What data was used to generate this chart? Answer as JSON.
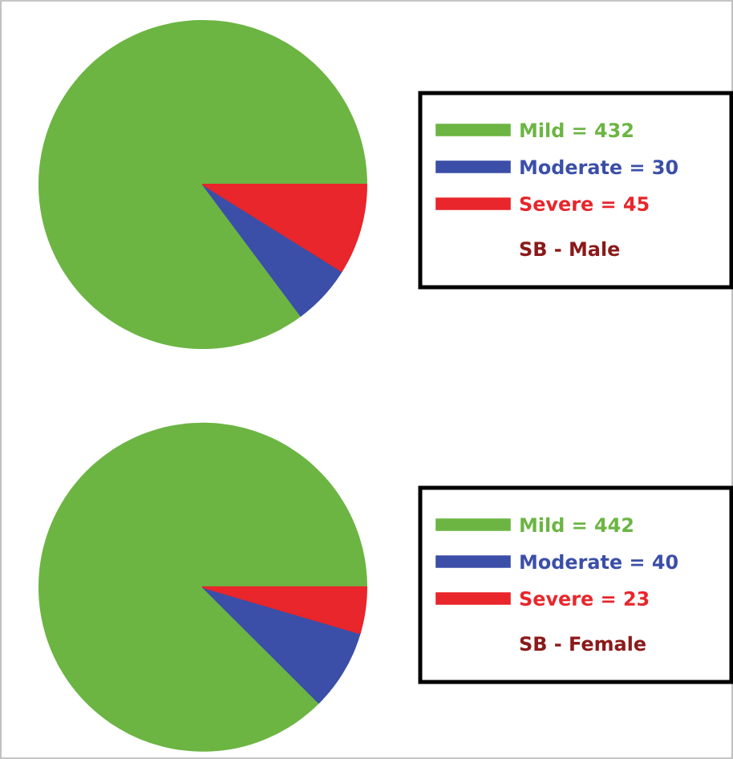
{
  "chart_data": [
    {
      "type": "pie",
      "categories": [
        "Mild = 432",
        "Moderate = 30",
        "Severe = 45"
      ],
      "values": [
        432,
        30,
        45
      ],
      "colors": [
        "#6cb543",
        "#3b4fa8",
        "#e8262b"
      ],
      "legend_title": "SB - Male",
      "legend": "right"
    },
    {
      "type": "pie",
      "categories": [
        "Mild = 442",
        "Moderate = 40",
        "Severe = 23"
      ],
      "values": [
        442,
        40,
        23
      ],
      "colors": [
        "#6cb543",
        "#3b4fa8",
        "#e8262b"
      ],
      "legend_title": "SB - Female",
      "legend": "right"
    }
  ]
}
